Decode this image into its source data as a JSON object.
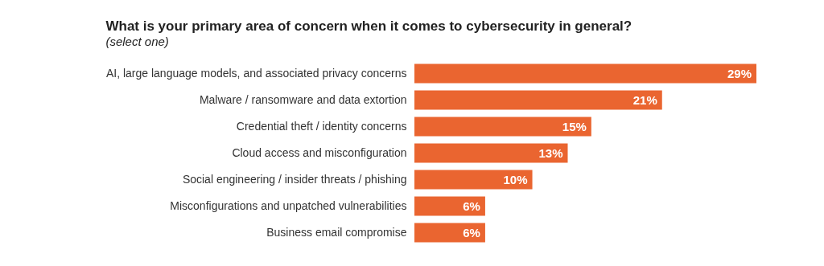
{
  "chart_data": {
    "type": "bar",
    "orientation": "horizontal",
    "title": "What is your primary area of concern when it comes to cybersecurity in general?",
    "subtitle": "(select one)",
    "categories": [
      "AI, large language models, and associated privacy concerns",
      "Malware / ransomware and data extortion",
      "Credential theft / identity concerns",
      "Cloud access and misconfiguration",
      "Social engineering / insider threats / phishing",
      "Misconfigurations and unpatched vulnerabilities",
      "Business email compromise"
    ],
    "values": [
      29,
      21,
      15,
      13,
      10,
      6,
      6
    ],
    "value_labels": [
      "29%",
      "21%",
      "15%",
      "13%",
      "10%",
      "6%",
      "6%"
    ],
    "color": "#ea6530"
  }
}
